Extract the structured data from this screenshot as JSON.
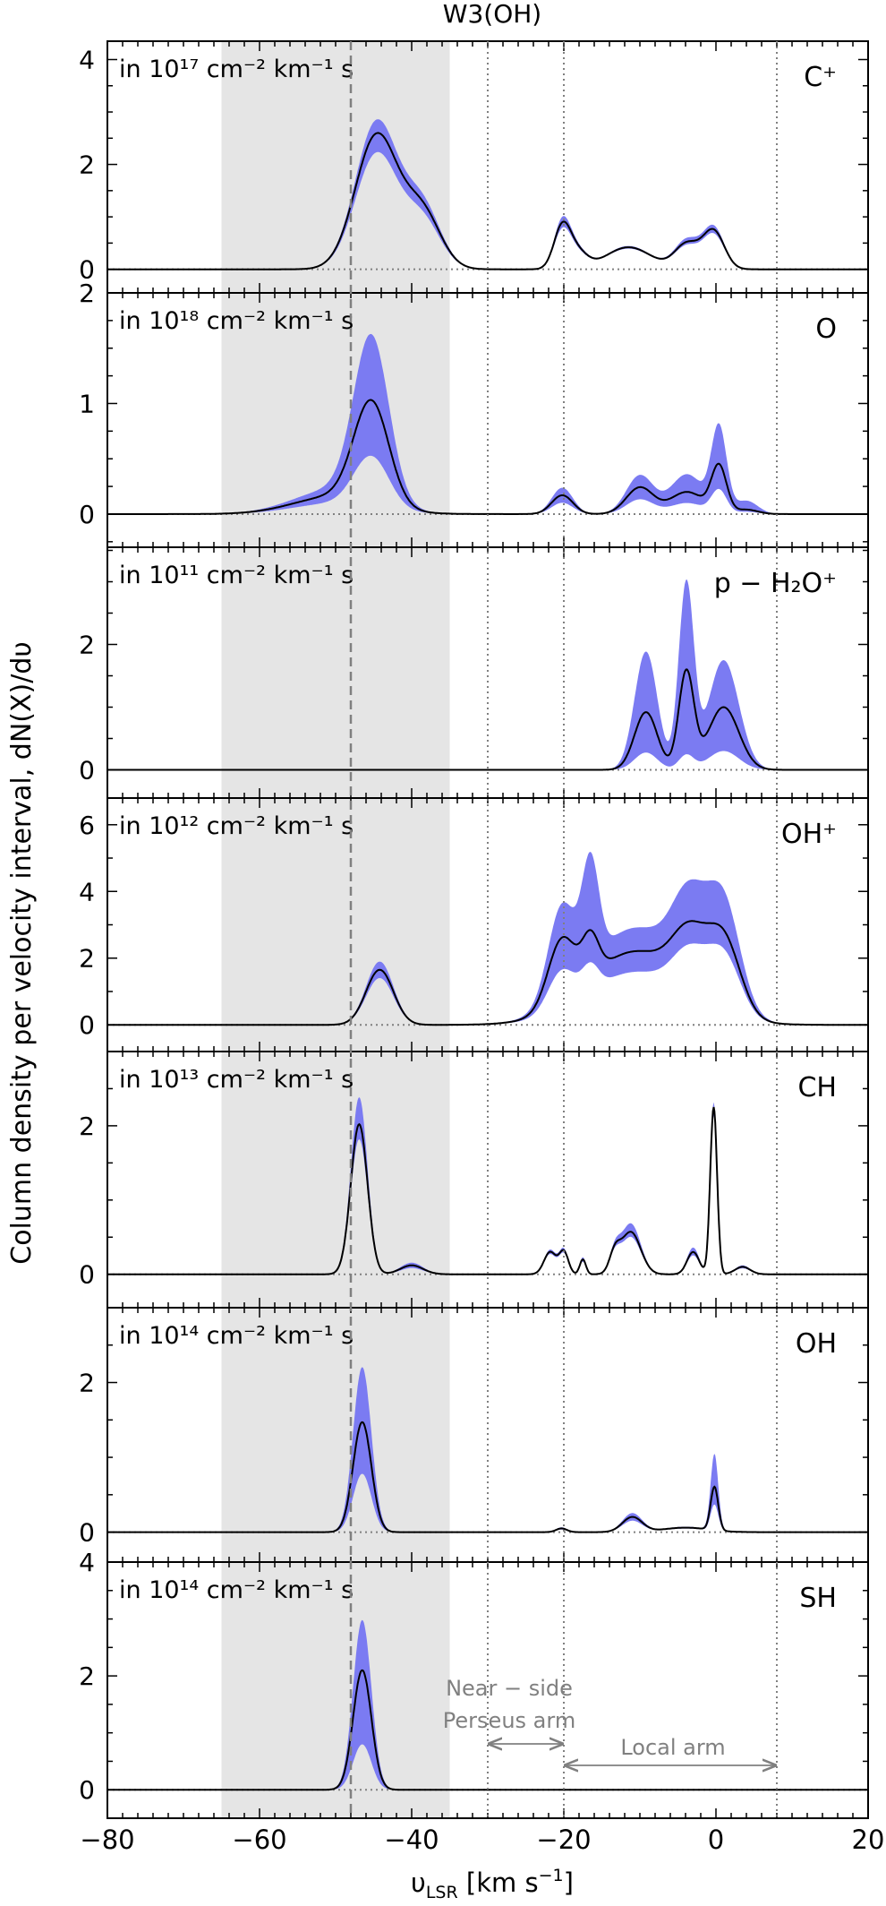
{
  "figure_title": "W3(OH)",
  "ylabel": "Column density per velocity interval,  dN(X)/dυ",
  "xlabel": "υ_LSR [km s⁻¹]",
  "colors": {
    "band": "#7b7bf2",
    "line": "#000000",
    "shade": "#e5e5e5",
    "vline": "#808080",
    "annot": "#808080"
  },
  "annotations": {
    "near_side_line1": "Near − side",
    "near_side_line2": "Perseus arm",
    "local_arm": "Local arm",
    "near_side_range": [
      -30,
      -20
    ],
    "local_arm_range": [
      -20,
      8
    ]
  },
  "chart_data": {
    "type": "line",
    "title": "W3(OH)",
    "xlabel": "υLSR [km s−1]",
    "ylabel": "Column density per velocity interval, dN(X)/dυ",
    "xlim": [
      -80,
      20
    ],
    "xticks": [
      -80,
      -60,
      -40,
      -20,
      0,
      20
    ],
    "xtick_labels": [
      "−80",
      "−60",
      "−40",
      "−20",
      "0",
      "20"
    ],
    "shaded_region": [
      -65,
      -35
    ],
    "dashed_vline": -48,
    "dotted_vlines": [
      -30,
      -20,
      8
    ],
    "panels": [
      {
        "species": "C⁺",
        "unit_label": "in 10¹⁷ cm⁻² km⁻¹ s",
        "ylim": [
          -0.45,
          4.35
        ],
        "yticks": [
          0,
          2,
          4
        ],
        "minor_step": 0.5,
        "components": [
          {
            "a": 2.55,
            "mu": -44.6,
            "s": 2.8,
            "up": 1.1,
            "lo": 0.86
          },
          {
            "a": 1.05,
            "mu": -38.6,
            "s": 2.4,
            "up": 1.12,
            "lo": 0.86
          },
          {
            "a": 0.8,
            "mu": -20.2,
            "s": 1.1,
            "up": 1.12,
            "lo": 0.88
          },
          {
            "a": 0.3,
            "mu": -18.2,
            "s": 1.3,
            "up": 1.1,
            "lo": 0.9
          },
          {
            "a": 0.42,
            "mu": -11.5,
            "s": 3.0,
            "up": 1.06,
            "lo": 0.94
          },
          {
            "a": 0.48,
            "mu": -3.8,
            "s": 1.6,
            "up": 1.15,
            "lo": 0.9
          },
          {
            "a": 0.72,
            "mu": -0.3,
            "s": 1.4,
            "up": 1.1,
            "lo": 0.9
          }
        ]
      },
      {
        "species": "O",
        "unit_label": "in 10¹⁸ cm⁻² km⁻¹ s",
        "ylim": [
          -0.3,
          2.0
        ],
        "yticks": [
          0,
          1,
          2
        ],
        "minor_step": 0.25,
        "components": [
          {
            "a": 0.92,
            "mu": -45.3,
            "s": 2.3,
            "up": 1.6,
            "lo": 0.5
          },
          {
            "a": 0.16,
            "mu": -50.0,
            "s": 5.5,
            "up": 1.4,
            "lo": 0.6
          },
          {
            "a": 0.17,
            "mu": -20.2,
            "s": 1.4,
            "up": 1.4,
            "lo": 0.6
          },
          {
            "a": 0.24,
            "mu": -10.0,
            "s": 1.8,
            "up": 1.45,
            "lo": 0.55
          },
          {
            "a": 0.2,
            "mu": -3.8,
            "s": 2.2,
            "up": 1.8,
            "lo": 0.5
          },
          {
            "a": 0.42,
            "mu": 0.4,
            "s": 1.0,
            "up": 1.8,
            "lo": 0.5
          },
          {
            "a": 0.04,
            "mu": 4.0,
            "s": 1.5,
            "up": 3.0,
            "lo": 0.5
          }
        ]
      },
      {
        "species": "p − H₂O⁺",
        "unit_label": "in 10¹¹ cm⁻² km⁻¹ s",
        "ylim": [
          -0.45,
          3.55
        ],
        "yticks": [
          0,
          2
        ],
        "minor_step": 0.5,
        "components": [
          {
            "a": 0.92,
            "mu": -9.2,
            "s": 1.5,
            "up": 2.05,
            "lo": 0.3
          },
          {
            "a": 1.55,
            "mu": -3.9,
            "s": 1.0,
            "up": 1.9,
            "lo": 0.15
          },
          {
            "a": 1.0,
            "mu": 1.0,
            "s": 2.0,
            "up": 1.75,
            "lo": 0.3
          }
        ]
      },
      {
        "species": "OH⁺",
        "unit_label": "in 10¹² cm⁻² km⁻¹ s",
        "ylim": [
          -0.8,
          6.8
        ],
        "yticks": [
          0,
          2,
          4,
          6
        ],
        "minor_step": 1,
        "components": [
          {
            "a": 1.65,
            "mu": -44.2,
            "s": 1.8,
            "up": 1.15,
            "lo": 0.85
          },
          {
            "a": 1.9,
            "mu": -20.3,
            "s": 1.8,
            "up": 1.42,
            "lo": 0.6
          },
          {
            "a": 1.2,
            "mu": -16.5,
            "s": 1.1,
            "up": 2.5,
            "lo": 0.6
          },
          {
            "a": 2.2,
            "mu": -10.5,
            "s": 6.5,
            "up": 1.32,
            "lo": 0.72
          },
          {
            "a": 1.6,
            "mu": -3.5,
            "s": 2.2,
            "up": 1.45,
            "lo": 0.82
          },
          {
            "a": 2.2,
            "mu": 1.0,
            "s": 2.2,
            "up": 1.45,
            "lo": 0.82
          }
        ]
      },
      {
        "species": "CH",
        "unit_label": "in 10¹³ cm⁻² km⁻¹ s",
        "ylim": [
          -0.45,
          3.0
        ],
        "yticks": [
          0,
          2
        ],
        "minor_step": 0.5,
        "components": [
          {
            "a": 2.02,
            "mu": -46.9,
            "s": 1.1,
            "up": 1.18,
            "lo": 0.9
          },
          {
            "a": 0.12,
            "mu": -40.0,
            "s": 1.5,
            "up": 1.3,
            "lo": 0.7
          },
          {
            "a": 0.3,
            "mu": -21.8,
            "s": 0.8,
            "up": 1.1,
            "lo": 0.9
          },
          {
            "a": 0.3,
            "mu": -20.0,
            "s": 0.6,
            "up": 1.1,
            "lo": 0.9
          },
          {
            "a": 0.2,
            "mu": -17.5,
            "s": 0.4,
            "up": 1.15,
            "lo": 0.85
          },
          {
            "a": 0.57,
            "mu": -11.2,
            "s": 1.3,
            "up": 1.2,
            "lo": 0.88
          },
          {
            "a": 0.25,
            "mu": -13.3,
            "s": 0.7,
            "up": 1.1,
            "lo": 0.9
          },
          {
            "a": 0.3,
            "mu": -3.0,
            "s": 0.8,
            "up": 1.2,
            "lo": 0.85
          },
          {
            "a": 2.25,
            "mu": -0.3,
            "s": 0.45,
            "up": 1.03,
            "lo": 0.95
          },
          {
            "a": 0.1,
            "mu": 3.5,
            "s": 1.0,
            "up": 1.2,
            "lo": 0.8
          }
        ]
      },
      {
        "species": "OH",
        "unit_label": "in 10¹⁴ cm⁻² km⁻¹ s",
        "ylim": [
          -0.4,
          3.0
        ],
        "yticks": [
          0,
          2
        ],
        "minor_step": 0.5,
        "components": [
          {
            "a": 1.47,
            "mu": -46.5,
            "s": 1.2,
            "up": 1.5,
            "lo": 0.53
          },
          {
            "a": 0.05,
            "mu": -20.3,
            "s": 0.7,
            "up": 1.3,
            "lo": 0.7
          },
          {
            "a": 0.2,
            "mu": -11.0,
            "s": 1.3,
            "up": 1.25,
            "lo": 0.75
          },
          {
            "a": 0.06,
            "mu": -4.0,
            "s": 3.0,
            "up": 1.2,
            "lo": 0.8
          },
          {
            "a": 0.58,
            "mu": -0.2,
            "s": 0.5,
            "up": 1.75,
            "lo": 0.6
          }
        ]
      },
      {
        "species": "SH",
        "unit_label": "in 10¹⁴ cm⁻² km⁻¹ s",
        "ylim": [
          -0.5,
          4.0
        ],
        "yticks": [
          0,
          2,
          4
        ],
        "minor_step": 0.5,
        "components": [
          {
            "a": 2.1,
            "mu": -46.5,
            "s": 1.2,
            "up": 1.42,
            "lo": 0.38
          }
        ]
      }
    ]
  }
}
